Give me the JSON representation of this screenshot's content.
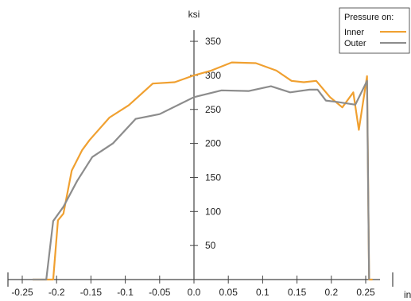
{
  "chart_data": {
    "type": "line",
    "xlabel": "in",
    "ylabel": "ksi",
    "xlim": [
      -0.27,
      0.275
    ],
    "ylim": [
      0,
      350
    ],
    "x_ticks": [
      -0.25,
      -0.2,
      -0.15,
      -0.1,
      -0.05,
      0.0,
      0.05,
      0.1,
      0.15,
      0.2,
      0.25
    ],
    "x_tick_labels": [
      "-0.25",
      "-0.2",
      "-0.15",
      "-0.1",
      "-0.05",
      "0.0",
      "0.05",
      "0.1",
      "0.15",
      "0.2",
      "0.25"
    ],
    "y_ticks": [
      50,
      100,
      150,
      200,
      250,
      300,
      350
    ],
    "y_tick_labels": [
      "50",
      "100",
      "150",
      "200",
      "250",
      "300",
      "350"
    ],
    "legend": {
      "title": "Pressure on:",
      "position": "top-right"
    },
    "grid": false,
    "series": [
      {
        "name": "Inner",
        "color": "#F0A030",
        "points": [
          [
            -0.235,
            0
          ],
          [
            -0.205,
            0
          ],
          [
            -0.198,
            87
          ],
          [
            -0.19,
            97
          ],
          [
            -0.178,
            160
          ],
          [
            -0.163,
            190
          ],
          [
            -0.152,
            205
          ],
          [
            -0.123,
            238
          ],
          [
            -0.095,
            256
          ],
          [
            -0.06,
            288
          ],
          [
            -0.028,
            290
          ],
          [
            0.0,
            300
          ],
          [
            0.025,
            307
          ],
          [
            0.055,
            319
          ],
          [
            0.09,
            318
          ],
          [
            0.12,
            307
          ],
          [
            0.142,
            292
          ],
          [
            0.16,
            290
          ],
          [
            0.178,
            292
          ],
          [
            0.198,
            268
          ],
          [
            0.216,
            253
          ],
          [
            0.232,
            275
          ],
          [
            0.24,
            220
          ],
          [
            0.252,
            299
          ],
          [
            0.255,
            0
          ],
          [
            0.26,
            0
          ]
        ]
      },
      {
        "name": "Outer",
        "color": "#8C8C8C",
        "points": [
          [
            -0.235,
            0
          ],
          [
            -0.215,
            0
          ],
          [
            -0.205,
            86
          ],
          [
            -0.19,
            107
          ],
          [
            -0.17,
            145
          ],
          [
            -0.148,
            180
          ],
          [
            -0.118,
            200
          ],
          [
            -0.085,
            236
          ],
          [
            -0.05,
            243
          ],
          [
            0.0,
            268
          ],
          [
            0.04,
            278
          ],
          [
            0.08,
            277
          ],
          [
            0.112,
            284
          ],
          [
            0.14,
            275
          ],
          [
            0.168,
            279
          ],
          [
            0.18,
            279
          ],
          [
            0.192,
            263
          ],
          [
            0.208,
            261
          ],
          [
            0.235,
            257
          ],
          [
            0.252,
            292
          ],
          [
            0.255,
            0
          ]
        ]
      }
    ]
  }
}
